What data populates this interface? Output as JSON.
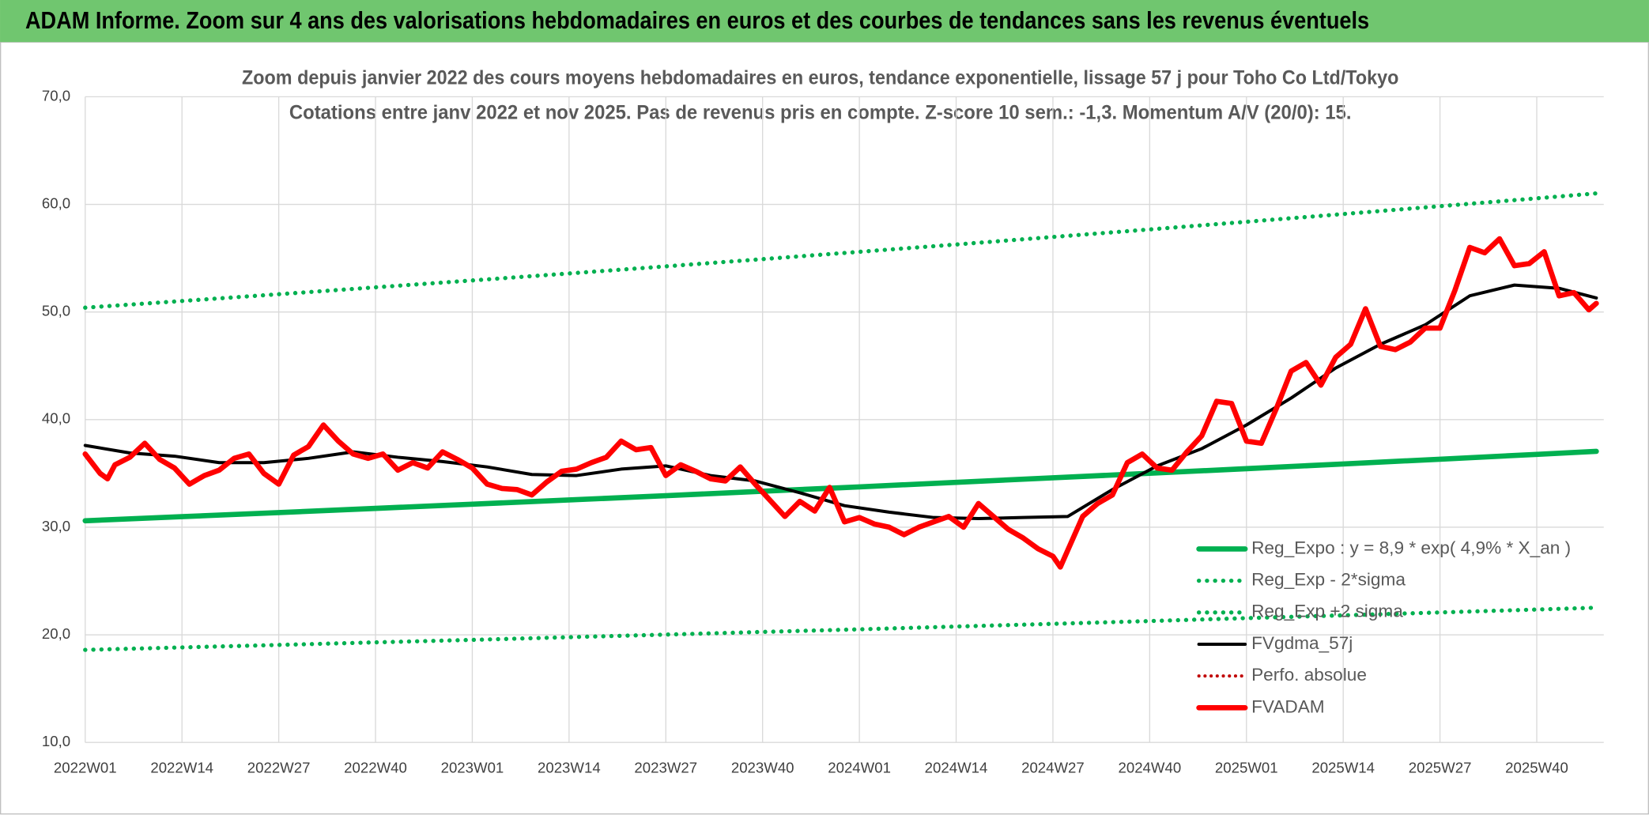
{
  "chart_data": {
    "type": "line",
    "title": "ADAM Informe. Zoom sur 4 ans des valorisations hebdomadaires en euros et des courbes de tendances sans les revenus éventuels",
    "subtitle": [
      "Zoom depuis janvier 2022 des cours moyens hebdomadaires en euros, tendance exponentielle, lissage 57 j pour Toho Co Ltd/Tokyo",
      "Cotations entre janv 2022 et nov 2025. Pas de revenus pris en compte. Z-score 10 sem.: -1,3. Momentum A/V (20/0): 15."
    ],
    "xlim": [
      0,
      204
    ],
    "xticks": [
      {
        "value": 0,
        "label": "2022W01"
      },
      {
        "value": 13,
        "label": "2022W14"
      },
      {
        "value": 26,
        "label": "2022W27"
      },
      {
        "value": 39,
        "label": "2022W40"
      },
      {
        "value": 52,
        "label": "2023W01"
      },
      {
        "value": 65,
        "label": "2023W14"
      },
      {
        "value": 78,
        "label": "2023W27"
      },
      {
        "value": 91,
        "label": "2023W40"
      },
      {
        "value": 104,
        "label": "2024W01"
      },
      {
        "value": 117,
        "label": "2024W14"
      },
      {
        "value": 130,
        "label": "2024W27"
      },
      {
        "value": 143,
        "label": "2024W40"
      },
      {
        "value": 156,
        "label": "2025W01"
      },
      {
        "value": 169,
        "label": "2025W14"
      },
      {
        "value": 182,
        "label": "2025W27"
      },
      {
        "value": 195,
        "label": "2025W40"
      }
    ],
    "ylim": [
      10,
      70
    ],
    "yticks": [
      {
        "value": 10,
        "label": "10,0"
      },
      {
        "value": 20,
        "label": "20,0"
      },
      {
        "value": 30,
        "label": "30,0"
      },
      {
        "value": 40,
        "label": "40,0"
      },
      {
        "value": 50,
        "label": "50,0"
      },
      {
        "value": 60,
        "label": "60,0"
      },
      {
        "value": 70,
        "label": "70,0"
      }
    ],
    "grid": true,
    "legend": "lower right",
    "series": [
      {
        "name": "Reg_Expo : y = 8,9 * exp( 4,9% *  X_an )",
        "color": "#00b050",
        "style": "solid",
        "width": 5,
        "x": [
          0,
          13,
          26,
          39,
          52,
          65,
          78,
          91,
          104,
          117,
          130,
          143,
          156,
          169,
          182,
          195,
          203
        ],
        "values": [
          30.6,
          30.98,
          31.36,
          31.75,
          32.14,
          32.53,
          32.93,
          33.34,
          33.75,
          34.17,
          34.59,
          35.01,
          35.44,
          35.88,
          36.32,
          36.77,
          37.05
        ]
      },
      {
        "name": "Reg_Exp - 2*sigma",
        "color": "#00b050",
        "style": "dotted",
        "width": 4,
        "x": [
          0,
          13,
          26,
          39,
          52,
          65,
          78,
          91,
          104,
          117,
          130,
          143,
          156,
          169,
          182,
          195,
          203
        ],
        "values": [
          18.6,
          18.83,
          19.06,
          19.3,
          19.53,
          19.78,
          20.02,
          20.27,
          20.51,
          20.77,
          21.02,
          21.28,
          21.55,
          21.81,
          22.08,
          22.35,
          22.52
        ]
      },
      {
        "name": "Reg_Exp +2 sigma",
        "color": "#00b050",
        "style": "dotted",
        "width": 4,
        "x": [
          0,
          13,
          26,
          39,
          52,
          65,
          78,
          91,
          104,
          117,
          130,
          143,
          156,
          169,
          182,
          195,
          203
        ],
        "values": [
          50.4,
          51.02,
          51.65,
          52.29,
          52.93,
          53.58,
          54.24,
          54.91,
          55.59,
          56.27,
          56.97,
          57.67,
          58.38,
          59.1,
          59.83,
          60.56,
          61.02
        ]
      },
      {
        "name": "FVgdma_57j",
        "color": "#000000",
        "style": "solid",
        "width": 3,
        "x": [
          0,
          6,
          12,
          18,
          24,
          30,
          36,
          42,
          48,
          54,
          60,
          66,
          72,
          78,
          84,
          90,
          96,
          102,
          108,
          114,
          120,
          126,
          132,
          138,
          144,
          150,
          156,
          162,
          168,
          174,
          180,
          186,
          192,
          198,
          203
        ],
        "values": [
          37.6,
          36.9,
          36.6,
          36.0,
          36.0,
          36.4,
          37.0,
          36.5,
          36.1,
          35.6,
          34.9,
          34.8,
          35.4,
          35.7,
          34.8,
          34.3,
          33.2,
          32.0,
          31.4,
          30.9,
          30.8,
          30.9,
          31.0,
          33.5,
          35.7,
          37.3,
          39.5,
          42.0,
          44.8,
          47.0,
          48.8,
          51.5,
          52.5,
          52.2,
          51.3
        ]
      },
      {
        "name": "Perfo. absolue",
        "color": "#c00000",
        "style": "dotted",
        "width": 3,
        "x": [],
        "values": []
      },
      {
        "name": "FVADAM",
        "color": "#ff0000",
        "style": "solid",
        "width": 5,
        "x": [
          0,
          2,
          3,
          4,
          6,
          8,
          10,
          12,
          14,
          16,
          18,
          20,
          22,
          24,
          26,
          28,
          30,
          32,
          34,
          36,
          38,
          40,
          42,
          44,
          46,
          48,
          50,
          52,
          54,
          56,
          58,
          60,
          62,
          64,
          66,
          68,
          70,
          72,
          74,
          76,
          78,
          80,
          82,
          84,
          86,
          88,
          90,
          92,
          94,
          96,
          98,
          100,
          102,
          104,
          106,
          108,
          110,
          112,
          114,
          116,
          118,
          120,
          122,
          124,
          126,
          128,
          130,
          131,
          134,
          136,
          138,
          140,
          142,
          144,
          146,
          148,
          150,
          152,
          154,
          156,
          158,
          160,
          162,
          164,
          166,
          168,
          170,
          172,
          174,
          176,
          178,
          180,
          182,
          184,
          186,
          188,
          190,
          192,
          194,
          196,
          198,
          200,
          202,
          203
        ],
        "values": [
          36.8,
          35.0,
          34.5,
          35.8,
          36.5,
          37.8,
          36.3,
          35.5,
          34.0,
          34.8,
          35.3,
          36.4,
          36.8,
          35.0,
          34.0,
          36.7,
          37.5,
          39.5,
          38.0,
          36.8,
          36.4,
          36.8,
          35.3,
          36.0,
          35.5,
          37.0,
          36.3,
          35.5,
          34.0,
          33.6,
          33.5,
          33.0,
          34.2,
          35.2,
          35.4,
          36.0,
          36.5,
          38.0,
          37.2,
          37.4,
          34.8,
          35.8,
          35.2,
          34.5,
          34.3,
          35.6,
          34.0,
          32.5,
          31.0,
          32.4,
          31.5,
          33.7,
          30.5,
          30.9,
          30.3,
          30.0,
          29.3,
          30.0,
          30.5,
          31.0,
          30.0,
          32.2,
          31.0,
          29.8,
          29.0,
          28.0,
          27.3,
          26.3,
          31.0,
          32.2,
          33.0,
          36.0,
          36.8,
          35.5,
          35.3,
          37.0,
          38.5,
          41.7,
          41.5,
          38.0,
          37.8,
          41.0,
          44.5,
          45.3,
          43.2,
          45.8,
          47.0,
          50.3,
          46.8,
          46.5,
          47.2,
          48.5,
          48.5,
          52.0,
          56.0,
          55.5,
          56.8,
          54.3,
          54.5,
          55.6,
          51.5,
          51.8,
          50.2,
          50.8
        ]
      }
    ]
  }
}
